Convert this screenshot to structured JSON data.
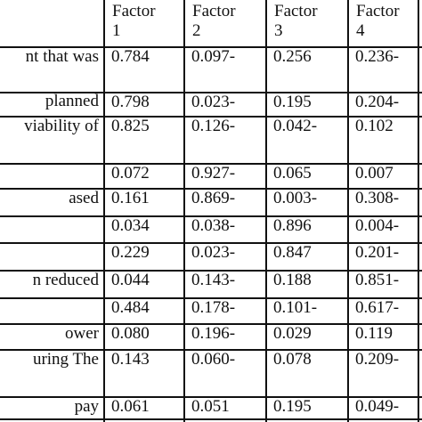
{
  "table": {
    "header": [
      "Factor\n1",
      "Factor\n2",
      "Factor\n3",
      "Factor\n4"
    ],
    "rows": [
      {
        "label": "nt that was",
        "values": [
          "0.784",
          "0.097-",
          "0.256",
          "0.236-"
        ]
      },
      {
        "label": "planned",
        "values": [
          "0.798",
          "0.023-",
          "0.195",
          "0.204-"
        ]
      },
      {
        "label": "viability of",
        "values": [
          "0.825",
          "0.126-",
          "0.042-",
          "0.102"
        ]
      },
      {
        "values": [
          "0.072",
          "0.927-",
          "0.065",
          "0.007"
        ]
      },
      {
        "label": "ased",
        "values": [
          "0.161",
          "0.869-",
          "0.003-",
          "0.308-"
        ]
      },
      {
        "values": [
          "0.034",
          "0.038-",
          "0.896",
          "0.004-"
        ]
      },
      {
        "values": [
          "0.229",
          "0.023-",
          "0.847",
          "0.201-"
        ]
      },
      {
        "label": "n reduced",
        "values": [
          "0.044",
          "0.143-",
          "0.188",
          "0.851-"
        ]
      },
      {
        "values": [
          "0.484",
          "0.178-",
          "0.101-",
          "0.617-"
        ]
      },
      {
        "label": "ower",
        "values": [
          "0.080",
          "0.196-",
          "0.029",
          "0.119"
        ]
      },
      {
        "label": "uring   The",
        "values": [
          "0.143",
          "0.060-",
          "0.078",
          "0.209-"
        ]
      },
      {
        "label": "pay",
        "values": [
          "0.061",
          "0.051",
          "0.195",
          "0.049-"
        ]
      }
    ]
  }
}
